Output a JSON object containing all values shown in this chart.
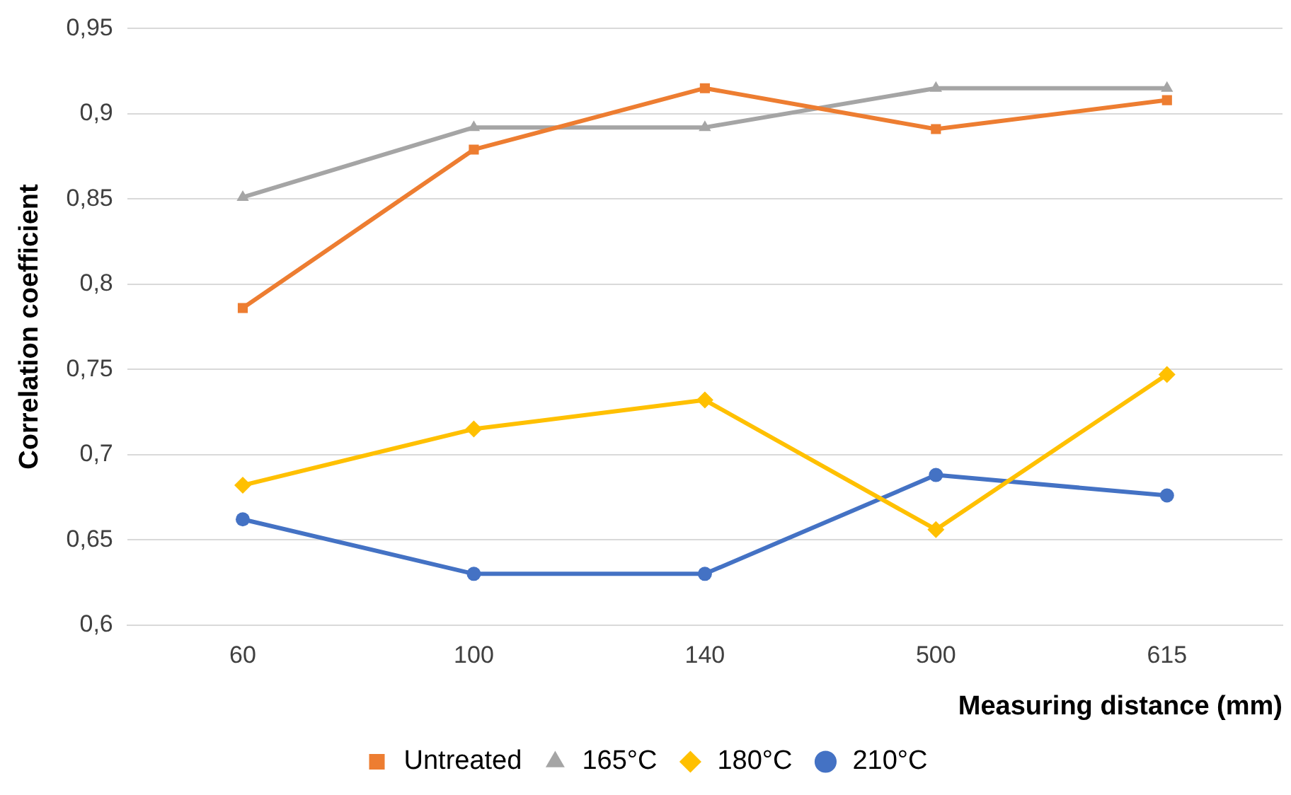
{
  "chart_data": {
    "type": "line",
    "xlabel": "Measuring distance (mm)",
    "ylabel": "Correlation coefficient",
    "categories": [
      "60",
      "100",
      "140",
      "500",
      "615"
    ],
    "series": [
      {
        "name": "Untreated",
        "color": "#ed7d31",
        "marker": "square",
        "values": [
          0.786,
          0.879,
          0.915,
          0.891,
          0.908
        ]
      },
      {
        "name": "165°C",
        "color": "#a5a5a5",
        "marker": "triangle",
        "values": [
          0.851,
          0.892,
          0.892,
          0.915,
          0.915
        ]
      },
      {
        "name": "180°C",
        "color": "#ffc000",
        "marker": "diamond",
        "values": [
          0.682,
          0.715,
          0.732,
          0.656,
          0.747
        ]
      },
      {
        "name": "210°C",
        "color": "#4472c4",
        "marker": "circle",
        "values": [
          0.662,
          0.63,
          0.63,
          0.688,
          0.676
        ]
      }
    ],
    "ylim": [
      0.6,
      0.95
    ],
    "yticks": [
      {
        "value": 0.6,
        "label": "0,6"
      },
      {
        "value": 0.65,
        "label": "0,65"
      },
      {
        "value": 0.7,
        "label": "0,7"
      },
      {
        "value": 0.75,
        "label": "0,75"
      },
      {
        "value": 0.8,
        "label": "0,8"
      },
      {
        "value": 0.85,
        "label": "0,85"
      },
      {
        "value": 0.9,
        "label": "0,9"
      },
      {
        "value": 0.95,
        "label": "0,95"
      }
    ],
    "grid": "y",
    "legend": "bottom",
    "line_style": "solid"
  }
}
